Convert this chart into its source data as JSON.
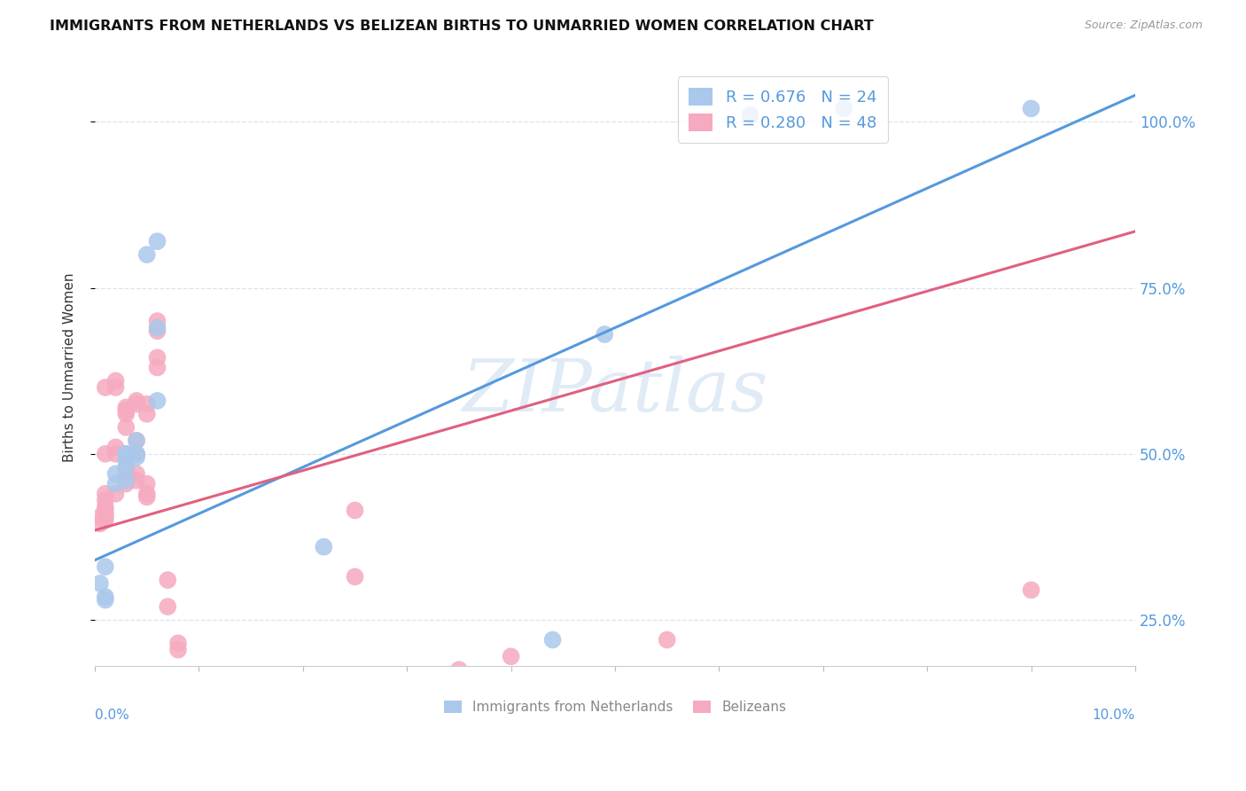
{
  "title": "IMMIGRANTS FROM NETHERLANDS VS BELIZEAN BIRTHS TO UNMARRIED WOMEN CORRELATION CHART",
  "source": "Source: ZipAtlas.com",
  "ylabel": "Births to Unmarried Women",
  "legend_label1": "R = 0.676   N = 24",
  "legend_label2": "R = 0.280   N = 48",
  "legend_bottom1": "Immigrants from Netherlands",
  "legend_bottom2": "Belizeans",
  "blue_color": "#aac8eb",
  "pink_color": "#f5aabf",
  "blue_line_color": "#5599dd",
  "pink_line_color": "#e06080",
  "x_min": 0.0,
  "x_max": 0.1,
  "y_min": 0.18,
  "y_max": 1.08,
  "blue_scatter_x": [
    0.0005,
    0.001,
    0.001,
    0.001,
    0.002,
    0.002,
    0.003,
    0.003,
    0.003,
    0.003,
    0.003,
    0.004,
    0.004,
    0.004,
    0.005,
    0.006,
    0.006,
    0.006,
    0.022,
    0.063,
    0.072,
    0.09,
    0.049,
    0.044
  ],
  "blue_scatter_y": [
    0.305,
    0.285,
    0.33,
    0.28,
    0.47,
    0.455,
    0.49,
    0.5,
    0.48,
    0.46,
    0.5,
    0.5,
    0.495,
    0.52,
    0.8,
    0.69,
    0.82,
    0.58,
    0.36,
    1.01,
    1.02,
    1.02,
    0.68,
    0.22
  ],
  "pink_scatter_x": [
    0.0005,
    0.0005,
    0.001,
    0.001,
    0.001,
    0.001,
    0.001,
    0.001,
    0.001,
    0.001,
    0.001,
    0.002,
    0.002,
    0.002,
    0.002,
    0.002,
    0.003,
    0.003,
    0.003,
    0.003,
    0.003,
    0.003,
    0.003,
    0.004,
    0.004,
    0.004,
    0.004,
    0.004,
    0.004,
    0.005,
    0.005,
    0.005,
    0.005,
    0.005,
    0.006,
    0.006,
    0.006,
    0.006,
    0.007,
    0.007,
    0.008,
    0.008,
    0.025,
    0.025,
    0.035,
    0.04,
    0.055,
    0.09
  ],
  "pink_scatter_y": [
    0.395,
    0.405,
    0.4,
    0.405,
    0.41,
    0.415,
    0.42,
    0.43,
    0.44,
    0.5,
    0.6,
    0.44,
    0.5,
    0.51,
    0.6,
    0.61,
    0.455,
    0.47,
    0.48,
    0.54,
    0.56,
    0.57,
    0.565,
    0.46,
    0.47,
    0.5,
    0.52,
    0.575,
    0.58,
    0.435,
    0.44,
    0.455,
    0.56,
    0.575,
    0.63,
    0.645,
    0.685,
    0.7,
    0.27,
    0.31,
    0.205,
    0.215,
    0.415,
    0.315,
    0.175,
    0.195,
    0.22,
    0.295
  ],
  "blue_line_x": [
    0.0,
    0.1
  ],
  "blue_line_y": [
    0.34,
    1.04
  ],
  "pink_line_x": [
    0.0,
    0.1
  ],
  "pink_line_y": [
    0.385,
    0.835
  ],
  "ytick_vals": [
    0.25,
    0.5,
    0.75,
    1.0
  ],
  "ytick_labels": [
    "25.0%",
    "50.0%",
    "75.0%",
    "100.0%"
  ],
  "xtick_positions": [
    0.0,
    0.01,
    0.02,
    0.03,
    0.04,
    0.05,
    0.06,
    0.07,
    0.08,
    0.09,
    0.1
  ],
  "grid_color": "#d8e4f0",
  "spine_color": "#cccccc",
  "text_color": "#333333",
  "right_label_color": "#5599dd",
  "source_color": "#999999",
  "watermark_text": "ZIPatlas",
  "watermark_color": "#dce8f5"
}
